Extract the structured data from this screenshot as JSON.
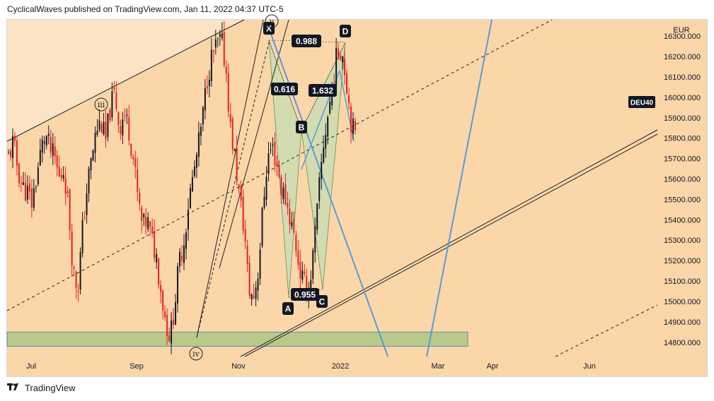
{
  "header": {
    "text": "CyclicalWaves published on TradingView.com, Jan 11, 2022 04:37 UTC-5"
  },
  "footer": {
    "brand": "TradingView",
    "logo_icon": "tradingview-logo-icon"
  },
  "colors": {
    "background": "#fbd6a9",
    "upper_channel_fill": "#fde3c6",
    "support_zone": "#b8c98a",
    "pattern_fill": "#c5dcb4",
    "candle_up": "#131722",
    "candle_down": "#e52020",
    "blue_line": "#5b9bd5",
    "label_bg": "#131722",
    "label_text": "#ffffff"
  },
  "chart_data": {
    "type": "candlestick",
    "symbol": "DEU40",
    "currency": "EUR",
    "x_ticks": [
      "Jul",
      "Sep",
      "Nov",
      "2022",
      "Mar",
      "Apr",
      "Jun"
    ],
    "y_ticks": [
      14800,
      14900,
      15000,
      15100,
      15200,
      15300,
      15400,
      15500,
      15600,
      15700,
      15800,
      15900,
      16000,
      16100,
      16200,
      16300
    ],
    "y_tick_labels": [
      "14800.000",
      "14900.000",
      "15000.000",
      "15100.000",
      "15200.000",
      "15300.000",
      "15400.000",
      "15500.000",
      "15600.000",
      "15700.000",
      "15800.000",
      "15900.000",
      "16000.000",
      "16100.000",
      "16200.000",
      "16300.000"
    ],
    "ylim": [
      14730,
      16380
    ],
    "grid": false,
    "series_path": [
      [
        15710,
        15780
      ],
      [
        15650,
        15560
      ],
      [
        15540,
        15480
      ],
      [
        15600,
        15740
      ],
      [
        15820,
        15740
      ],
      [
        15700,
        15600
      ],
      [
        15650,
        15450
      ],
      [
        15150,
        15060
      ],
      [
        15350,
        15560
      ],
      [
        15700,
        15840
      ],
      [
        15880,
        15780
      ],
      [
        15950,
        16020
      ],
      [
        15850,
        15920
      ],
      [
        15850,
        15700
      ],
      [
        15500,
        15360
      ],
      [
        15400,
        15300
      ],
      [
        15220,
        15050
      ],
      [
        14900,
        14820
      ],
      [
        15000,
        15200
      ],
      [
        15300,
        15500
      ],
      [
        15620,
        15750
      ],
      [
        15900,
        16100
      ],
      [
        16200,
        16250
      ],
      [
        16280,
        16150
      ],
      [
        15850,
        15700
      ],
      [
        15500,
        15350
      ],
      [
        15050,
        15020
      ],
      [
        15150,
        15450
      ],
      [
        15700,
        15760
      ],
      [
        15680,
        15550
      ],
      [
        15500,
        15400
      ],
      [
        15300,
        15150
      ],
      [
        15080,
        15060
      ],
      [
        15250,
        15500
      ],
      [
        15750,
        15900
      ],
      [
        16050,
        16200
      ],
      [
        16250,
        16100
      ],
      [
        15900,
        15800
      ]
    ],
    "harmonic_pattern": {
      "points": [
        {
          "label": "X",
          "value": 16280
        },
        {
          "label": "A",
          "value": 15020
        },
        {
          "label": "B",
          "value": 15840
        },
        {
          "label": "C",
          "value": 15060
        },
        {
          "label": "D",
          "value": 16270
        }
      ],
      "ratios": [
        "0.988",
        "0.616",
        "1.632",
        "0.955"
      ]
    },
    "wave_labels": [
      "iii",
      "iv",
      "v"
    ],
    "support_zone": [
      14780,
      14850
    ]
  }
}
